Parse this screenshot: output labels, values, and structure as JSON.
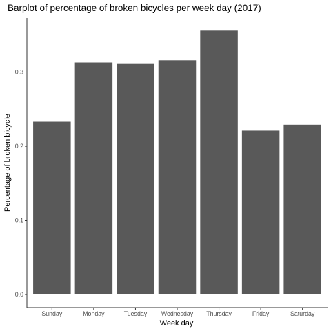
{
  "chart_data": {
    "type": "bar",
    "title": "Barplot of percentage of broken bicycles per week day (2017)",
    "xlabel": "Week day",
    "ylabel": "Percentage of broken bicycle",
    "categories": [
      "Sunday",
      "Monday",
      "Tuesday",
      "Wednesday",
      "Thursday",
      "Friday",
      "Saturday"
    ],
    "values": [
      0.233,
      0.313,
      0.311,
      0.316,
      0.356,
      0.221,
      0.229
    ],
    "yticks": [
      0.0,
      0.1,
      0.2,
      0.3
    ],
    "ytick_labels": [
      "0.0",
      "0.1",
      "0.2",
      "0.3"
    ],
    "ylim": [
      0,
      0.373
    ],
    "grid": false,
    "legend": "none",
    "bar_color": "#595959",
    "axis_color": "#333333"
  }
}
